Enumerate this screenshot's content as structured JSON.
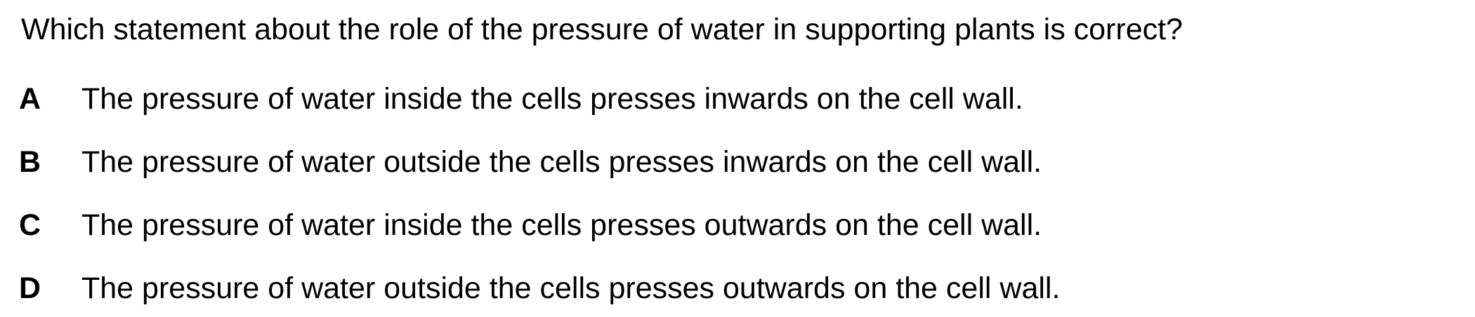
{
  "question": "Which statement about the role of the pressure of water in supporting plants is correct?",
  "options": [
    {
      "letter": "A",
      "text": "The pressure of water inside the cells presses inwards on the cell wall."
    },
    {
      "letter": "B",
      "text": "The pressure of water outside the cells presses inwards on the cell wall."
    },
    {
      "letter": "C",
      "text": "The pressure of water inside the cells presses outwards on the cell wall."
    },
    {
      "letter": "D",
      "text": "The pressure of water outside the cells presses outwards on the cell wall."
    }
  ]
}
